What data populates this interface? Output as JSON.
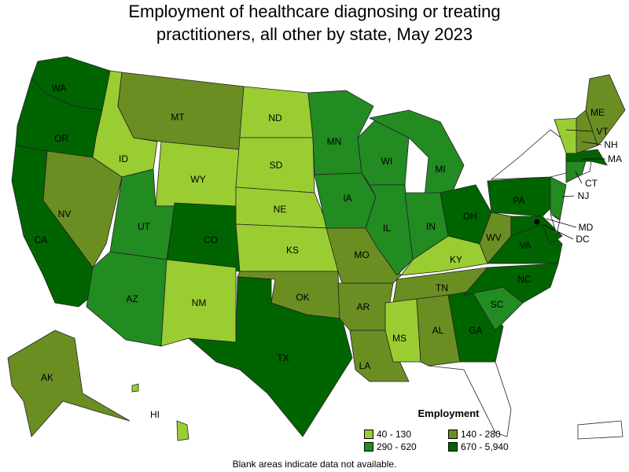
{
  "title_line1": "Employment of healthcare diagnosing or treating",
  "title_line2": "practitioners, all other by state, May 2023",
  "legend": {
    "title": "Employment",
    "items": [
      {
        "label": "40 - 130",
        "color": "#9acd32"
      },
      {
        "label": "140 - 280",
        "color": "#6b8e23"
      },
      {
        "label": "290 - 620",
        "color": "#228b22"
      },
      {
        "label": "670 - 5,940",
        "color": "#006400"
      }
    ]
  },
  "note": "Blank areas indicate data not available.",
  "states": {
    "WA": 3,
    "OR": 3,
    "CA": 3,
    "NV": 1,
    "ID": 0,
    "MT": 1,
    "WY": 0,
    "UT": 2,
    "AZ": 2,
    "CO": 3,
    "NM": 0,
    "ND": 0,
    "SD": 0,
    "NE": 0,
    "KS": 0,
    "OK": 1,
    "TX": 3,
    "MN": 2,
    "IA": 2,
    "MO": 1,
    "AR": 1,
    "LA": 1,
    "WI": 2,
    "IL": 2,
    "MI": 2,
    "IN": 2,
    "OH": 3,
    "KY": 0,
    "TN": 1,
    "MS": 0,
    "AL": 1,
    "GA": 3,
    "SC": 2,
    "NC": 3,
    "VA": 3,
    "WV": 1,
    "PA": 3,
    "NJ": 2,
    "MD": 3,
    "DC": 3,
    "CT": 2,
    "MA": 3,
    "VT": 0,
    "NH": 1,
    "ME": 1,
    "AK": 1,
    "HI": 0,
    "NY": null,
    "FL": null,
    "DE": null,
    "RI": null,
    "PR": null
  }
}
